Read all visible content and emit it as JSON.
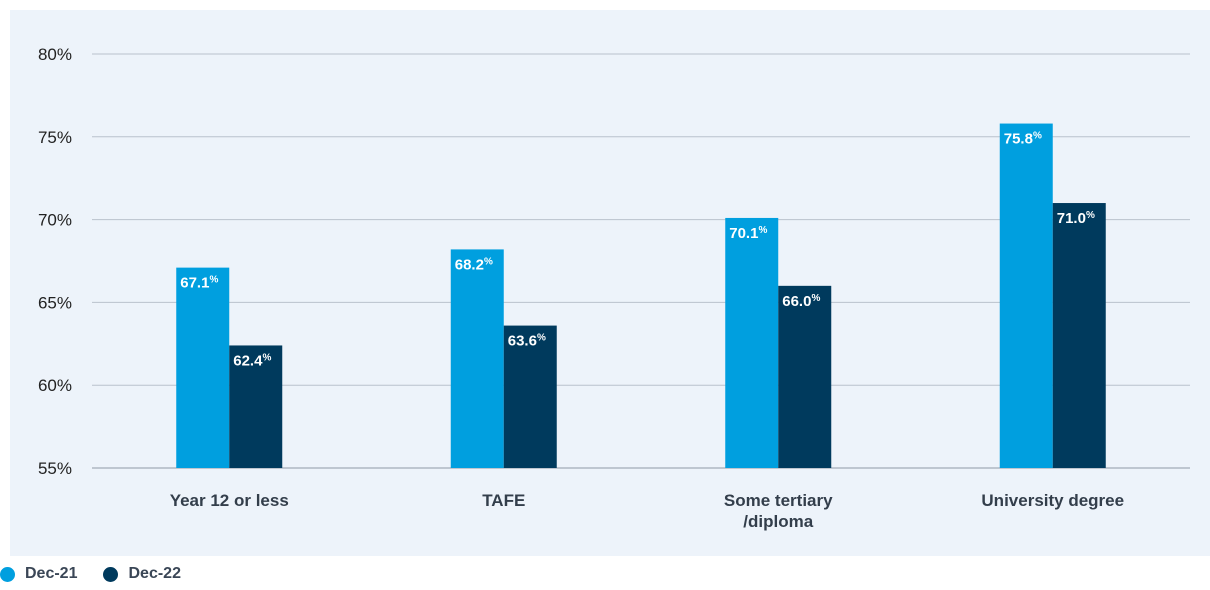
{
  "chart_data": {
    "type": "bar",
    "categories": [
      [
        "Year 12 or less"
      ],
      [
        "TAFE"
      ],
      [
        "Some tertiary",
        "/diploma"
      ],
      [
        "University degree"
      ]
    ],
    "series": [
      {
        "name": "Dec-21",
        "color": "#009fdf",
        "values": [
          67.1,
          68.2,
          70.1,
          75.8
        ]
      },
      {
        "name": "Dec-22",
        "color": "#003a5d",
        "values": [
          62.4,
          63.6,
          66.0,
          71.0
        ]
      }
    ],
    "data_labels": [
      [
        "67.1",
        "68.2",
        "70.1",
        "75.8"
      ],
      [
        "62.4",
        "63.6",
        "66.0",
        "71.0"
      ]
    ],
    "data_label_suffix": "%",
    "yticks": [
      "55%",
      "60%",
      "65%",
      "70%",
      "75%",
      "80%"
    ],
    "ylim": [
      55,
      80
    ],
    "grid": true,
    "legend_position": "bottom-left",
    "title": "",
    "xlabel": "",
    "ylabel": ""
  },
  "legend": [
    {
      "label": "Dec-21",
      "color": "#009fdf"
    },
    {
      "label": "Dec-22",
      "color": "#003a5d"
    }
  ]
}
